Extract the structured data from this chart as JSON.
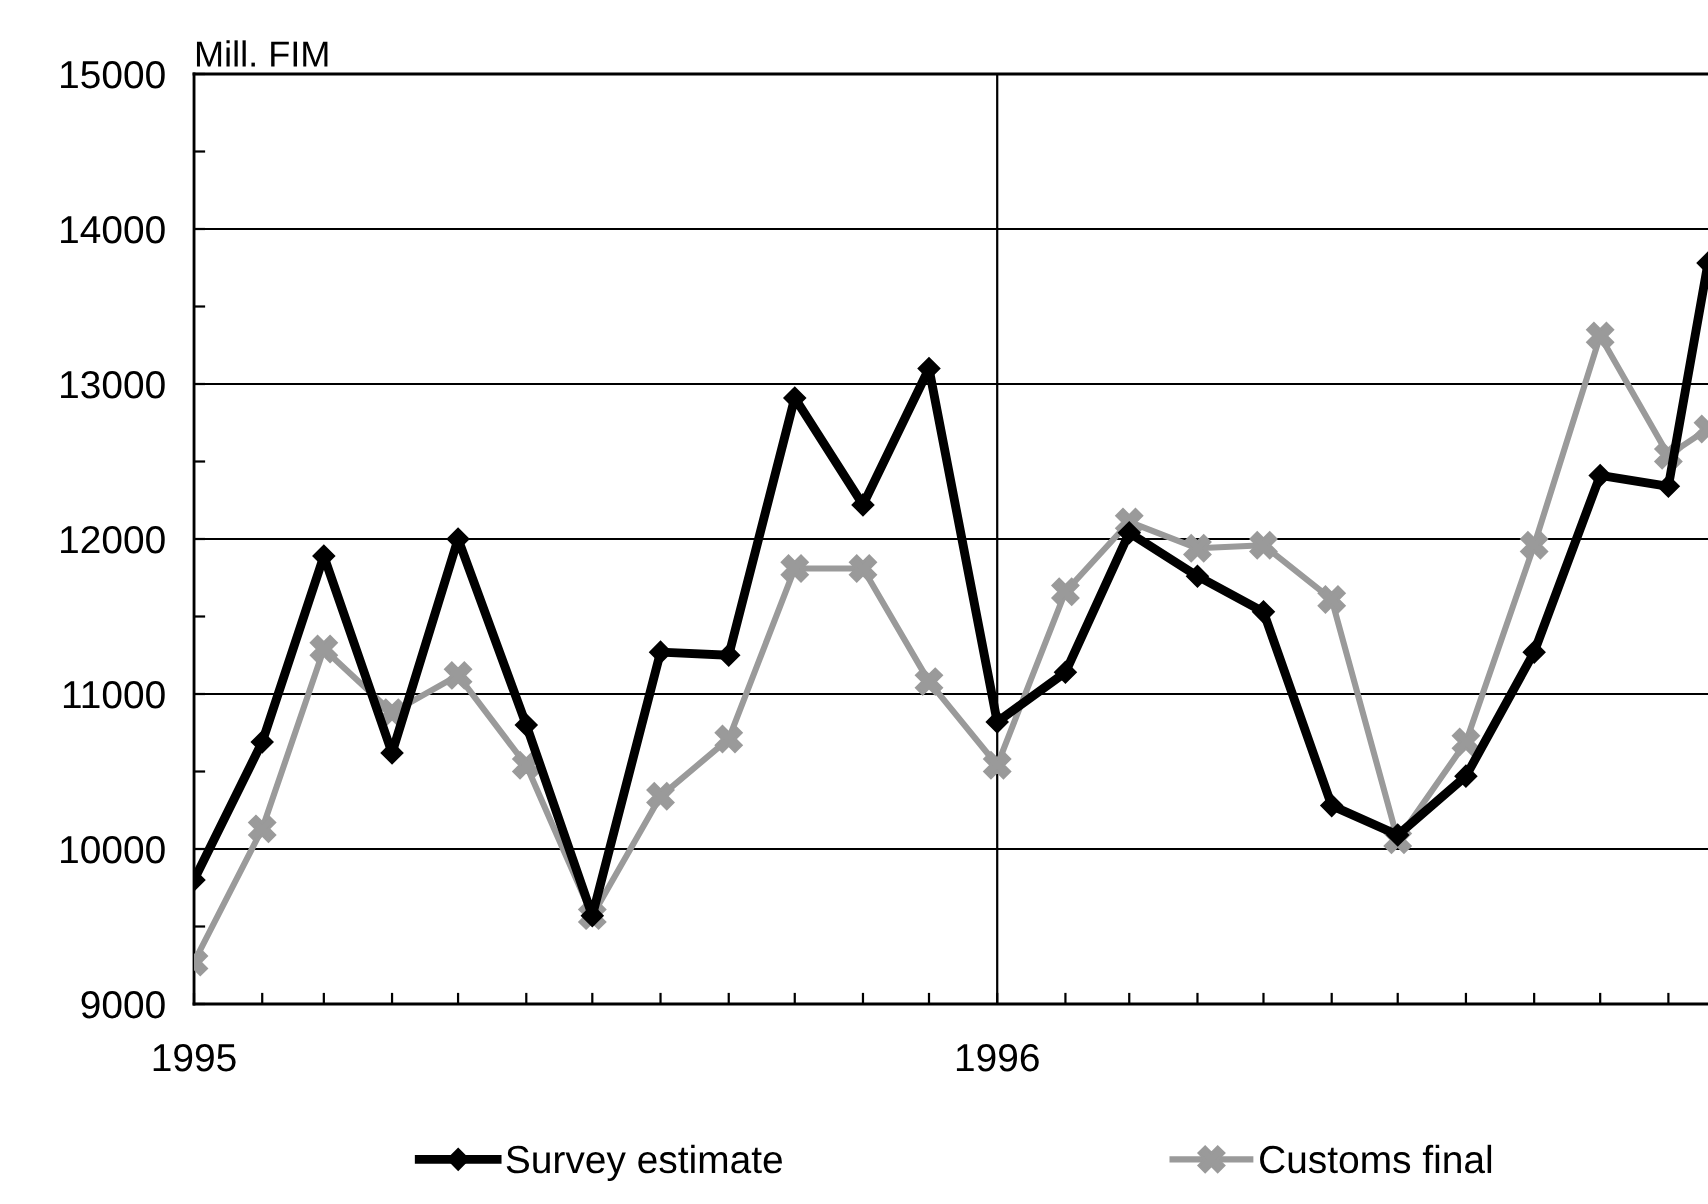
{
  "chart_data": {
    "type": "line",
    "ylabel": "Mill. FIM",
    "x": [
      "1995-01",
      "1995-02",
      "1995-03",
      "1995-04",
      "1995-05",
      "1995-06",
      "1995-07",
      "1995-08",
      "1995-09",
      "1995-10",
      "1995-11",
      "1995-12",
      "1996-01",
      "1996-02",
      "1996-03",
      "1996-04",
      "1996-05",
      "1996-06",
      "1996-07",
      "1996-08",
      "1996-09",
      "1996-10",
      "1996-11",
      "1996-11-19"
    ],
    "series": [
      {
        "name": "Survey estimate",
        "color": "#000000",
        "marker": "diamond",
        "values": [
          9800,
          10690,
          11890,
          10620,
          12000,
          10800,
          9570,
          11270,
          11250,
          12910,
          12220,
          13100,
          10820,
          11140,
          12040,
          11760,
          11530,
          10280,
          10090,
          10470,
          11270,
          12410,
          12340,
          13780
        ]
      },
      {
        "name": "Customs final",
        "color": "#9a9a9a",
        "marker": "cross",
        "values": [
          9270,
          10130,
          11290,
          10880,
          11120,
          10540,
          9570,
          10340,
          10710,
          11810,
          11810,
          11080,
          10540,
          11660,
          12110,
          11940,
          11960,
          11610,
          10060,
          10690,
          11960,
          13310,
          12540,
          12710
        ]
      }
    ],
    "xlim": [
      "1995-01",
      "1996-11-19"
    ],
    "xticks": [
      {
        "value": "1995-01",
        "label": "1995"
      },
      {
        "value": "1995-02",
        "label": null
      },
      {
        "value": "1995-03",
        "label": null
      },
      {
        "value": "1995-04",
        "label": null
      },
      {
        "value": "1995-05",
        "label": null
      },
      {
        "value": "1995-06",
        "label": null
      },
      {
        "value": "1995-07",
        "label": null
      },
      {
        "value": "1995-08",
        "label": null
      },
      {
        "value": "1995-09",
        "label": null
      },
      {
        "value": "1995-10",
        "label": null
      },
      {
        "value": "1995-11",
        "label": null
      },
      {
        "value": "1995-12",
        "label": null
      },
      {
        "value": "1996-01",
        "label": "1996"
      },
      {
        "value": "1996-02",
        "label": null
      },
      {
        "value": "1996-03",
        "label": null
      },
      {
        "value": "1996-04",
        "label": null
      },
      {
        "value": "1996-05",
        "label": null
      },
      {
        "value": "1996-06",
        "label": null
      },
      {
        "value": "1996-07",
        "label": null
      },
      {
        "value": "1996-08",
        "label": null
      },
      {
        "value": "1996-09",
        "label": null
      },
      {
        "value": "1996-10",
        "label": null
      },
      {
        "value": "1996-11",
        "label": null
      }
    ],
    "ylim": [
      9000,
      15000
    ],
    "yticks": [
      9000,
      {
        "value": 9500,
        "label": null
      },
      10000,
      {
        "value": 10500,
        "label": null
      },
      11000,
      {
        "value": 11500,
        "label": null
      },
      12000,
      {
        "value": 12500,
        "label": null
      },
      13000,
      {
        "value": 13500,
        "label": null
      },
      14000,
      {
        "value": 14500,
        "label": null
      },
      15000
    ],
    "grid": true,
    "legend": "bottom",
    "line_style": "solid"
  }
}
